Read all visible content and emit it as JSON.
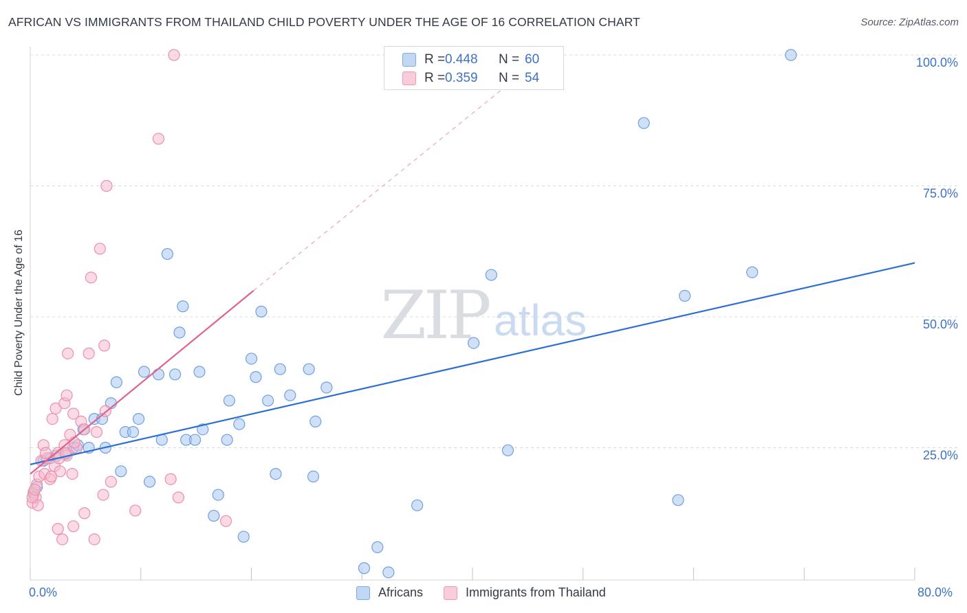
{
  "title": "AFRICAN VS IMMIGRANTS FROM THAILAND CHILD POVERTY UNDER THE AGE OF 16 CORRELATION CHART",
  "source": "Source: ZipAtlas.com",
  "watermark": {
    "zip": "ZIP",
    "atlas": "atlas"
  },
  "legend": {
    "r_label": "R =",
    "n_label": "N =",
    "series": [
      {
        "r": "0.448",
        "n": "60"
      },
      {
        "r": "0.359",
        "n": "54"
      }
    ]
  },
  "colors": {
    "blue_fill": "#a9c8f0",
    "blue_stroke": "#6f9fe0",
    "blue_line": "#2c6fd1",
    "pink_fill": "#f6bccd",
    "pink_stroke": "#eb8fab",
    "pink_line": "#e0628f",
    "tick_label": "#3d72c4",
    "grid": "#d7dbe0"
  },
  "chart_data": {
    "type": "scatter",
    "title": "AFRICAN VS IMMIGRANTS FROM THAILAND CHILD POVERTY UNDER THE AGE OF 16 CORRELATION CHART",
    "xlabel": "",
    "ylabel": "Child Poverty Under the Age of 16",
    "xlim": [
      0,
      80
    ],
    "ylim": [
      0,
      100
    ],
    "x_tick_labels": [
      "0.0%",
      "80.0%"
    ],
    "y_ticks": [
      25,
      50,
      75,
      100
    ],
    "y_tick_labels": [
      "25.0%",
      "50.0%",
      "75.0%",
      "100.0%"
    ],
    "grid": true,
    "series": [
      {
        "name": "Africans",
        "color": "blue",
        "trend": {
          "x0": 0,
          "y0": 21.8,
          "x1": 80,
          "y1": 60.3
        },
        "points": [
          [
            0.3,
            16.2
          ],
          [
            0.6,
            17.5
          ],
          [
            1.2,
            22.5
          ],
          [
            1.8,
            23.0
          ],
          [
            2.4,
            23.5
          ],
          [
            3.2,
            23.8
          ],
          [
            3.9,
            25.0
          ],
          [
            4.3,
            25.5
          ],
          [
            4.8,
            28.5
          ],
          [
            5.3,
            25.0
          ],
          [
            5.8,
            30.5
          ],
          [
            6.5,
            30.5
          ],
          [
            6.8,
            25.0
          ],
          [
            7.3,
            33.5
          ],
          [
            7.8,
            37.5
          ],
          [
            8.2,
            20.5
          ],
          [
            8.6,
            28.0
          ],
          [
            9.3,
            28.0
          ],
          [
            9.8,
            30.5
          ],
          [
            10.3,
            39.5
          ],
          [
            10.8,
            18.5
          ],
          [
            11.6,
            39.0
          ],
          [
            11.9,
            26.5
          ],
          [
            12.4,
            62.0
          ],
          [
            13.1,
            39.0
          ],
          [
            13.5,
            47.0
          ],
          [
            13.8,
            52.0
          ],
          [
            14.1,
            26.5
          ],
          [
            14.9,
            26.5
          ],
          [
            15.3,
            39.5
          ],
          [
            15.6,
            28.5
          ],
          [
            16.6,
            12.0
          ],
          [
            17.0,
            16.0
          ],
          [
            17.8,
            26.5
          ],
          [
            18.0,
            34.0
          ],
          [
            18.9,
            29.5
          ],
          [
            19.3,
            8.0
          ],
          [
            20.0,
            42.0
          ],
          [
            20.4,
            38.5
          ],
          [
            20.9,
            51.0
          ],
          [
            21.5,
            34.0
          ],
          [
            22.2,
            20.0
          ],
          [
            22.6,
            40.0
          ],
          [
            23.5,
            35.0
          ],
          [
            25.2,
            40.0
          ],
          [
            25.6,
            19.5
          ],
          [
            25.8,
            30.0
          ],
          [
            26.8,
            36.5
          ],
          [
            30.2,
            2.0
          ],
          [
            31.4,
            6.0
          ],
          [
            32.4,
            1.2
          ],
          [
            35.0,
            14.0
          ],
          [
            40.1,
            45.0
          ],
          [
            41.7,
            58.0
          ],
          [
            43.2,
            24.5
          ],
          [
            55.5,
            87.0
          ],
          [
            58.6,
            15.0
          ],
          [
            59.2,
            54.0
          ],
          [
            65.3,
            58.5
          ],
          [
            68.8,
            100.0
          ]
        ]
      },
      {
        "name": "Immigrants from Thailand",
        "color": "pink",
        "trend": {
          "x0": 0,
          "y0": 20.0,
          "x1": 20.2,
          "y1": 55.0,
          "dashed_to": {
            "x": 43.0,
            "y": 94.0
          }
        },
        "points": [
          [
            0.2,
            14.5
          ],
          [
            0.3,
            16.5
          ],
          [
            0.5,
            15.5
          ],
          [
            0.6,
            18.0
          ],
          [
            0.8,
            19.5
          ],
          [
            1.0,
            22.5
          ],
          [
            1.2,
            25.5
          ],
          [
            1.3,
            20.0
          ],
          [
            1.5,
            23.0
          ],
          [
            1.8,
            19.0
          ],
          [
            2.0,
            30.5
          ],
          [
            2.2,
            21.5
          ],
          [
            2.3,
            32.5
          ],
          [
            2.5,
            24.0
          ],
          [
            2.5,
            9.5
          ],
          [
            2.7,
            20.5
          ],
          [
            2.9,
            7.5
          ],
          [
            3.1,
            25.5
          ],
          [
            3.1,
            33.5
          ],
          [
            3.3,
            35.0
          ],
          [
            3.3,
            23.5
          ],
          [
            3.4,
            43.0
          ],
          [
            3.6,
            27.5
          ],
          [
            3.8,
            20.0
          ],
          [
            3.9,
            31.5
          ],
          [
            3.9,
            10.0
          ],
          [
            4.2,
            25.0
          ],
          [
            4.6,
            30.0
          ],
          [
            4.9,
            28.5
          ],
          [
            4.9,
            12.5
          ],
          [
            5.3,
            43.0
          ],
          [
            5.5,
            57.5
          ],
          [
            5.8,
            7.5
          ],
          [
            6.0,
            28.0
          ],
          [
            6.3,
            63.0
          ],
          [
            6.6,
            16.0
          ],
          [
            6.7,
            44.5
          ],
          [
            6.8,
            32.0
          ],
          [
            6.9,
            75.0
          ],
          [
            7.3,
            18.5
          ],
          [
            9.5,
            13.0
          ],
          [
            11.6,
            84.0
          ],
          [
            12.7,
            19.0
          ],
          [
            13.0,
            100.0
          ],
          [
            13.4,
            15.5
          ],
          [
            17.7,
            11.0
          ],
          [
            0.2,
            15.5
          ],
          [
            0.4,
            17.0
          ],
          [
            0.7,
            14.0
          ],
          [
            1.4,
            24.0
          ],
          [
            1.9,
            19.5
          ],
          [
            2.6,
            23.0
          ],
          [
            3.2,
            24.0
          ],
          [
            4.0,
            26.0
          ]
        ]
      }
    ]
  },
  "bottom_legend": [
    "Africans",
    "Immigrants from Thailand"
  ]
}
